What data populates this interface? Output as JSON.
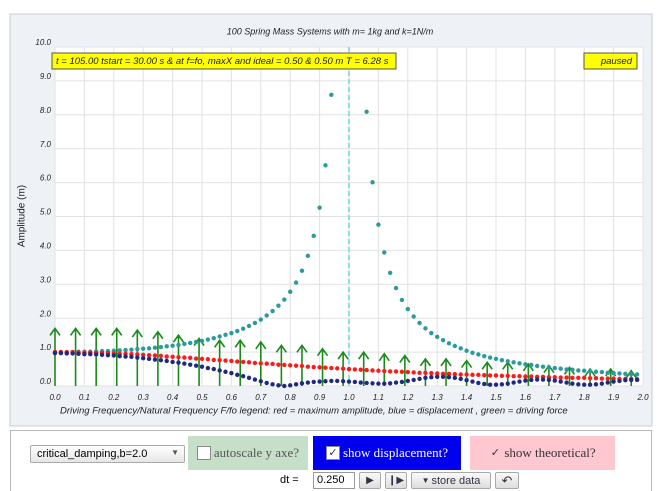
{
  "chart_data": {
    "type": "scatter",
    "title": "100 Spring Mass Systems with m= 1kg and k=1N/m",
    "info_text": "t = 105.00 tstart = 30.00 s & at f=fo, maxX and ideal = 0.50 & 0.50 m T = 6.28 s",
    "status": "paused",
    "xlabel": "Driving Frequency/Natural Frequency F/fo legend: red = maximum amplitude, blue = displacement , green = driving force",
    "ylabel": "Amplitude (m)",
    "xlim": [
      0,
      2
    ],
    "ylim": [
      0,
      10
    ],
    "xticks": [
      {
        "value": 0,
        "label": "0.0"
      },
      0.1,
      0.2,
      0.3,
      0.4,
      0.5,
      0.6,
      0.7,
      0.8,
      0.9,
      {
        "value": 1,
        "label": "1.0"
      },
      1.1,
      1.2,
      1.3,
      1.4,
      1.5,
      1.6,
      1.7,
      1.8,
      1.9,
      {
        "value": 2,
        "label": "2.0"
      }
    ],
    "yticks": [
      {
        "value": 0,
        "label": "0.0"
      },
      {
        "value": 1,
        "label": "1.0"
      },
      {
        "value": 2,
        "label": "2.0"
      },
      {
        "value": 3,
        "label": "3.0"
      },
      {
        "value": 4,
        "label": "4.0"
      },
      {
        "value": 5,
        "label": "5.0"
      },
      {
        "value": 6,
        "label": "6.0"
      },
      {
        "value": 7,
        "label": "7.0"
      },
      {
        "value": 8,
        "label": "8.0"
      },
      {
        "value": 9,
        "label": "9.0"
      },
      {
        "value": 10,
        "label": "10.0"
      }
    ],
    "grid": true,
    "vline": 1,
    "x": [
      0,
      0.02,
      0.04,
      0.06,
      0.08,
      0.1,
      0.12,
      0.14,
      0.16,
      0.18,
      0.2,
      0.22,
      0.24,
      0.26,
      0.28,
      0.3,
      0.32,
      0.34,
      0.36,
      0.38,
      0.4,
      0.42,
      0.44,
      0.46,
      0.48,
      0.5,
      0.52,
      0.54,
      0.56,
      0.58,
      0.6,
      0.62,
      0.64,
      0.66,
      0.68,
      0.7,
      0.72,
      0.74,
      0.76,
      0.78,
      0.8,
      0.82,
      0.84,
      0.86,
      0.88,
      0.9,
      0.92,
      0.94,
      0.96,
      0.98,
      1,
      1.02,
      1.04,
      1.06,
      1.08,
      1.1,
      1.12,
      1.14,
      1.16,
      1.18,
      1.2,
      1.22,
      1.24,
      1.26,
      1.28,
      1.3,
      1.32,
      1.34,
      1.36,
      1.38,
      1.4,
      1.42,
      1.44,
      1.46,
      1.48,
      1.5,
      1.52,
      1.54,
      1.56,
      1.58,
      1.6,
      1.62,
      1.64,
      1.66,
      1.68,
      1.7,
      1.72,
      1.74,
      1.76,
      1.78,
      1.8,
      1.82,
      1.84,
      1.86,
      1.88,
      1.9,
      1.92,
      1.94,
      1.96,
      1.98
    ],
    "series": [
      {
        "color": "#1a8a1a",
        "marker": "arrow",
        "x": [
          0,
          0.07,
          0.14,
          0.21,
          0.28,
          0.35,
          0.42,
          0.49,
          0.56,
          0.63,
          0.7,
          0.77,
          0.84,
          0.91,
          0.98,
          1.05,
          1.12,
          1.19,
          1.26,
          1.33,
          1.4,
          1.47,
          1.54,
          1.61,
          1.68,
          1.75,
          1.82,
          1.89,
          1.96
        ],
        "values": [
          1.7,
          1.7,
          1.7,
          1.7,
          1.65,
          1.6,
          1.5,
          1.4,
          1.35,
          1.35,
          1.3,
          1.2,
          1.2,
          1.1,
          1,
          1,
          0.95,
          0.9,
          0.8,
          0.8,
          0.75,
          0.7,
          0.7,
          0.65,
          0.6,
          0.55,
          0.5,
          0.5,
          0.45
        ]
      },
      {
        "color": "#2a9a9a",
        "marker": "dot",
        "values": [
          1.0,
          1.0,
          1.0,
          1.0,
          1.01,
          1.01,
          1.01,
          1.02,
          1.03,
          1.03,
          1.04,
          1.05,
          1.06,
          1.07,
          1.09,
          1.1,
          1.11,
          1.13,
          1.15,
          1.17,
          1.19,
          1.21,
          1.24,
          1.27,
          1.3,
          1.33,
          1.37,
          1.41,
          1.46,
          1.51,
          1.56,
          1.62,
          1.69,
          1.77,
          1.86,
          1.96,
          2.08,
          2.21,
          2.37,
          2.55,
          2.78,
          3.05,
          3.4,
          3.84,
          4.43,
          5.26,
          6.51,
          8.59,
          null,
          null,
          null,
          null,
          null,
          8.09,
          6.01,
          4.76,
          3.94,
          3.34,
          2.89,
          2.54,
          2.27,
          2.05,
          1.86,
          1.7,
          1.56,
          1.45,
          1.35,
          1.26,
          1.18,
          1.11,
          1.04,
          0.98,
          0.93,
          0.88,
          0.84,
          0.8,
          0.76,
          0.73,
          0.7,
          0.67,
          0.64,
          0.62,
          0.59,
          0.57,
          0.55,
          0.53,
          0.51,
          0.49,
          0.48,
          0.46,
          0.45,
          0.43,
          0.42,
          0.41,
          0.39,
          0.38,
          0.37,
          0.36,
          0.35,
          0.34
        ]
      },
      {
        "color": "#ff1a1a",
        "marker": "dot",
        "values": [
          1.0,
          1.0,
          1.0,
          1.0,
          0.99,
          0.99,
          0.99,
          0.98,
          0.98,
          0.97,
          0.96,
          0.95,
          0.95,
          0.94,
          0.93,
          0.92,
          0.91,
          0.9,
          0.89,
          0.87,
          0.86,
          0.85,
          0.84,
          0.83,
          0.81,
          0.8,
          0.79,
          0.77,
          0.76,
          0.75,
          0.74,
          0.72,
          0.71,
          0.7,
          0.68,
          0.67,
          0.66,
          0.65,
          0.63,
          0.62,
          0.61,
          0.6,
          0.59,
          0.57,
          0.56,
          0.55,
          0.54,
          0.53,
          0.52,
          0.51,
          0.5,
          0.49,
          0.48,
          0.47,
          0.46,
          0.45,
          0.44,
          0.43,
          0.43,
          0.42,
          0.41,
          0.4,
          0.39,
          0.39,
          0.38,
          0.37,
          0.36,
          0.36,
          0.35,
          0.34,
          0.34,
          0.33,
          0.33,
          0.32,
          0.31,
          0.31,
          0.3,
          0.3,
          0.29,
          0.29,
          0.28,
          0.28,
          0.27,
          0.27,
          0.26,
          0.26,
          0.25,
          0.25,
          0.24,
          0.24,
          0.24,
          0.23,
          0.23,
          0.22,
          0.22,
          0.22,
          0.21,
          0.21,
          0.21,
          0.2
        ]
      },
      {
        "color": "#1f2a80",
        "marker": "dot",
        "values": [
          0.97,
          0.97,
          0.96,
          0.96,
          0.95,
          0.94,
          0.94,
          0.93,
          0.92,
          0.91,
          0.9,
          0.88,
          0.87,
          0.86,
          0.84,
          0.82,
          0.8,
          0.78,
          0.76,
          0.74,
          0.71,
          0.69,
          0.66,
          0.63,
          0.6,
          0.57,
          0.53,
          0.5,
          0.46,
          0.42,
          0.38,
          0.33,
          0.29,
          0.24,
          0.19,
          0.14,
          0.09,
          0.05,
          0.02,
          0.0,
          0.02,
          0.05,
          0.08,
          0.1,
          0.12,
          0.13,
          0.14,
          0.15,
          0.15,
          0.14,
          0.13,
          0.12,
          0.1,
          0.09,
          0.08,
          0.07,
          0.07,
          0.08,
          0.1,
          0.12,
          0.15,
          0.18,
          0.21,
          0.24,
          0.26,
          0.27,
          0.27,
          0.26,
          0.24,
          0.21,
          0.17,
          0.13,
          0.09,
          0.06,
          0.04,
          0.04,
          0.05,
          0.07,
          0.1,
          0.13,
          0.16,
          0.18,
          0.19,
          0.19,
          0.18,
          0.16,
          0.13,
          0.1,
          0.07,
          0.05,
          0.04,
          0.04,
          0.05,
          0.07,
          0.1,
          0.13,
          0.15,
          0.17,
          0.18,
          0.18
        ]
      }
    ]
  },
  "controls": {
    "select": "critical_damping,b=2.0",
    "autoscale": {
      "label": "autoscale y axe?",
      "checked": false
    },
    "displacement": {
      "label": "show displacement?",
      "checked": true
    },
    "theoretical": {
      "label": "show theoretical?",
      "checked": true
    },
    "dt_label": "dt =",
    "dt": "0.250",
    "store_data": "store data"
  }
}
